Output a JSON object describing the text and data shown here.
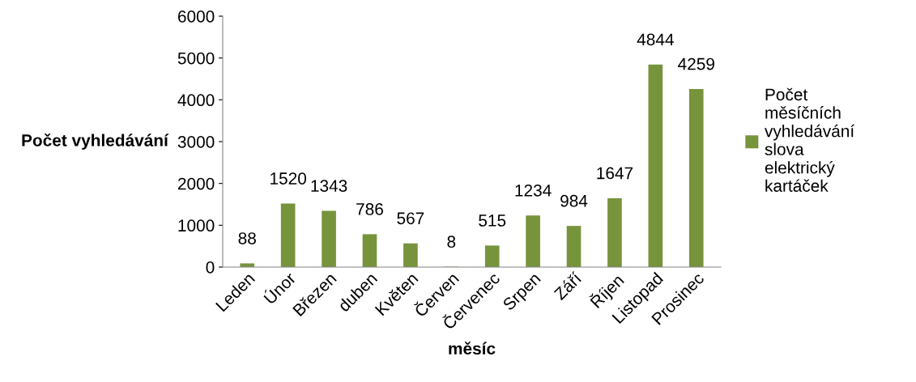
{
  "chart_data": {
    "type": "bar",
    "categories": [
      "Leden",
      "Únor",
      "Březen",
      "duben",
      "Květen",
      "Červen",
      "Červenec",
      "Srpen",
      "Září",
      "Říjen",
      "Listopad",
      "Prosinec"
    ],
    "series": [
      {
        "name": "Počet měsíčních vyhledávání slova elektrický kartáček",
        "color": "#77933c",
        "values": [
          88,
          1520,
          1343,
          786,
          567,
          8,
          515,
          1234,
          984,
          1647,
          4844,
          4259
        ]
      }
    ],
    "xlabel": "měsíc",
    "ylabel": "Počet vyhledávání",
    "ylim": [
      0,
      6000
    ],
    "yticks": [
      0,
      1000,
      2000,
      3000,
      4000,
      5000,
      6000
    ],
    "data_labels": true,
    "grid": false,
    "legend": "right"
  }
}
